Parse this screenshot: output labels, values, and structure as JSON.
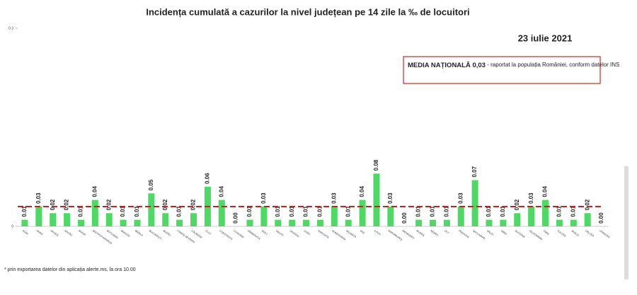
{
  "chart_data": {
    "type": "bar",
    "title": "Incidența cumulată a cazurilor la nivel județean pe 14 zile   la ‰ de locuitori",
    "date": "23 iulie 2021",
    "annotation": {
      "bold": "MEDIA NAȚIONALĂ 0,03",
      "text": " - raportat la populația României, conform datelor INS"
    },
    "national_mean": 0.03,
    "footnote": "* prin exportarea datelor din aplicația alerte.ms, la ora 10.00",
    "categories": [
      "ALBA",
      "ARAD",
      "ARGEȘ",
      "BACĂU",
      "BIHOR",
      "BISTRIȚA-NĂSĂUD",
      "BOTOȘANI",
      "BRAȘOV",
      "BRĂILA",
      "BUCUREȘTI",
      "BUZĂU",
      "CARAȘ-SEVERIN",
      "CĂLĂRAȘI",
      "CLUJ",
      "CONSTANȚA",
      "COVASNA",
      "DÂMBOVIȚA",
      "DOLJ",
      "GALAȚI",
      "GIURGIU",
      "GORJ",
      "HARGHITA",
      "HUNEDOARA",
      "IALOMIȚA",
      "IAȘI",
      "ILFOV",
      "MARAMUREȘ",
      "MEHEDINȚI",
      "MUREȘ",
      "NEAMȚ",
      "OLT",
      "PRAHOVA",
      "SATU MARE",
      "SĂLAJ",
      "SIBIU",
      "SUCEAVA",
      "TELEORMAN",
      "TIMIȘ",
      "TULCEA",
      "VASLUI",
      "VÂLCEA",
      "VRANCEA"
    ],
    "values": [
      0.01,
      0.03,
      0.02,
      0.02,
      0.01,
      0.04,
      0.02,
      0.01,
      0.01,
      0.05,
      0.02,
      0.01,
      0.02,
      0.06,
      0.04,
      0.0,
      0.01,
      0.03,
      0.01,
      0.01,
      0.01,
      0.01,
      0.03,
      0.01,
      0.04,
      0.08,
      0.03,
      0.0,
      0.01,
      0.01,
      0.01,
      0.03,
      0.07,
      0.01,
      0.01,
      0.02,
      0.03,
      0.04,
      0.01,
      0.01,
      0.02,
      0.0
    ],
    "value_labels": [
      "0.01",
      "0.03",
      "0.02",
      "0.02",
      "0.01",
      "0.04",
      "0.02",
      "0.01",
      "0.01",
      "0.05",
      "0.02",
      "0.01",
      "0.02",
      "0.06",
      "0.04",
      "0.00",
      "0.01",
      "0.03",
      "0.01",
      "0.01",
      "0.01",
      "0.01",
      "0.03",
      "0.01",
      "0.04",
      "0.08",
      "0.03",
      "0.00",
      "0.01",
      "0.01",
      "0.01",
      "0.03",
      "0.07",
      "0.01",
      "0.01",
      "0.02",
      "0.03",
      "0.04",
      "0.01",
      "0.01",
      "0.02",
      "0.00"
    ],
    "color": "#4cd964",
    "mean_color": "#cc1f1f",
    "ylim": [
      0,
      0.3
    ],
    "yticks": [
      0,
      0.3
    ]
  }
}
